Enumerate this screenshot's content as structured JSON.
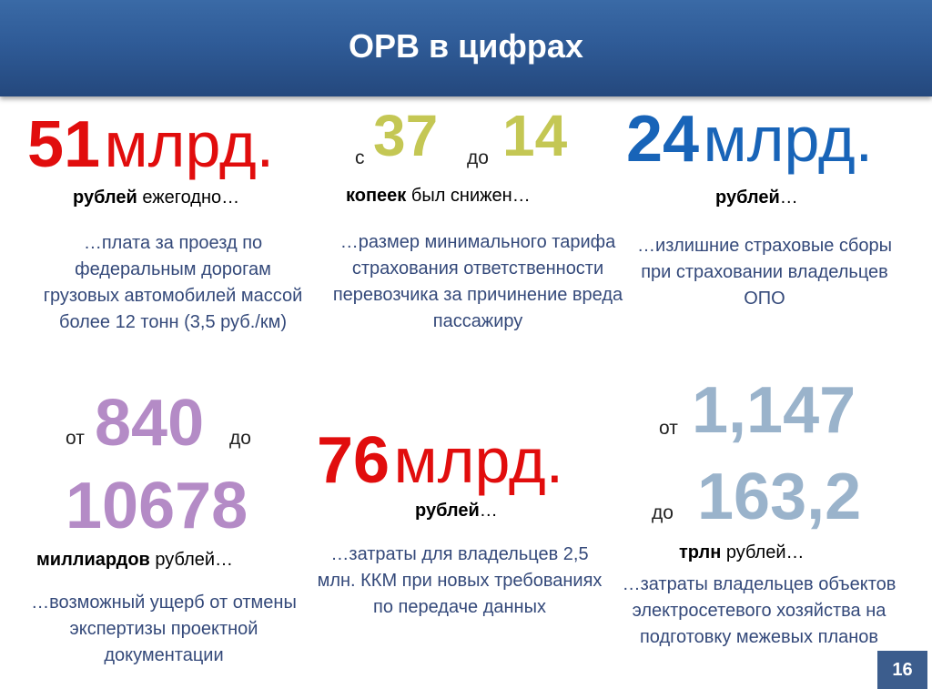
{
  "header": {
    "title": "ОРВ в цифрах"
  },
  "blocks": {
    "toll": {
      "number": "51",
      "unit": "млрд.",
      "caption_bold": "рублей",
      "caption_rest": " ежегодно…",
      "description": "…плата за проезд по федеральным дорогам грузовых автомобилей массой более 12 тонн (3,5 руб./км)"
    },
    "tariff": {
      "from_word": "с",
      "from_value": "37",
      "to_word": "до",
      "to_value": "14",
      "caption_bold": "копеек",
      "caption_rest": "  был снижен…",
      "description": "…размер минимального тарифа страхования ответственности перевозчика за причинение вреда пассажиру"
    },
    "insurance": {
      "number": "24",
      "unit": "млрд.",
      "caption_bold": "рублей",
      "caption_rest": "…",
      "description": "…излишние страховые сборы при страховании владельцев ОПО"
    },
    "expertise": {
      "from_word": "от",
      "from_value": "840",
      "to_word": "до",
      "to_value": "10678",
      "caption_bold": "миллиардов",
      "caption_rest": " рублей…",
      "description": "…возможный ущерб от отмены экспертизы проектной документации"
    },
    "kkm": {
      "number": "76",
      "unit": "млрд.",
      "caption_bold": "рублей",
      "caption_rest": "…",
      "description": "…затраты для владельцев 2,5 млн. ККМ при новых требованиях по передаче данных"
    },
    "grid": {
      "from_word": "от",
      "from_value": "1,147",
      "to_word": "до",
      "to_value": "163,2",
      "caption_bold": "трлн",
      "caption_rest": " рублей…",
      "description": "…затраты владельцев объектов электросетевого хозяйства на подготовку межевых планов"
    }
  },
  "footer": {
    "page_number": "16"
  }
}
